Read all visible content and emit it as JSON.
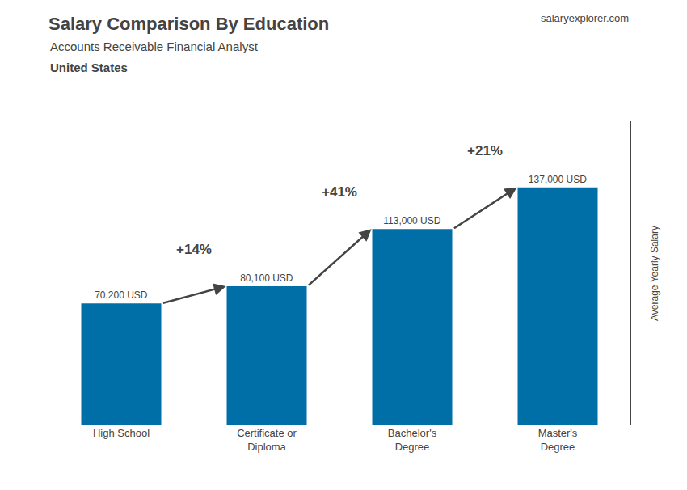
{
  "chart_data": {
    "type": "bar",
    "title": "Salary Comparison By Education",
    "subtitle": "Accounts Receivable Financial Analyst",
    "country": "United States",
    "watermark": "salaryexplorer.com",
    "ylabel": "Average Yearly Salary",
    "categories": [
      "High School",
      "Certificate or\nDiploma",
      "Bachelor's\nDegree",
      "Master's\nDegree"
    ],
    "values": [
      70200,
      80100,
      113000,
      137000
    ],
    "value_labels": [
      "70,200 USD",
      "80,100 USD",
      "113,000 USD",
      "137,000 USD"
    ],
    "data_labels": true,
    "annotations": [
      "+14%",
      "+41%",
      "+21%"
    ],
    "color": "#006fa8",
    "ylim": [
      0,
      175000
    ],
    "grid": false,
    "tick_labels": "x"
  }
}
